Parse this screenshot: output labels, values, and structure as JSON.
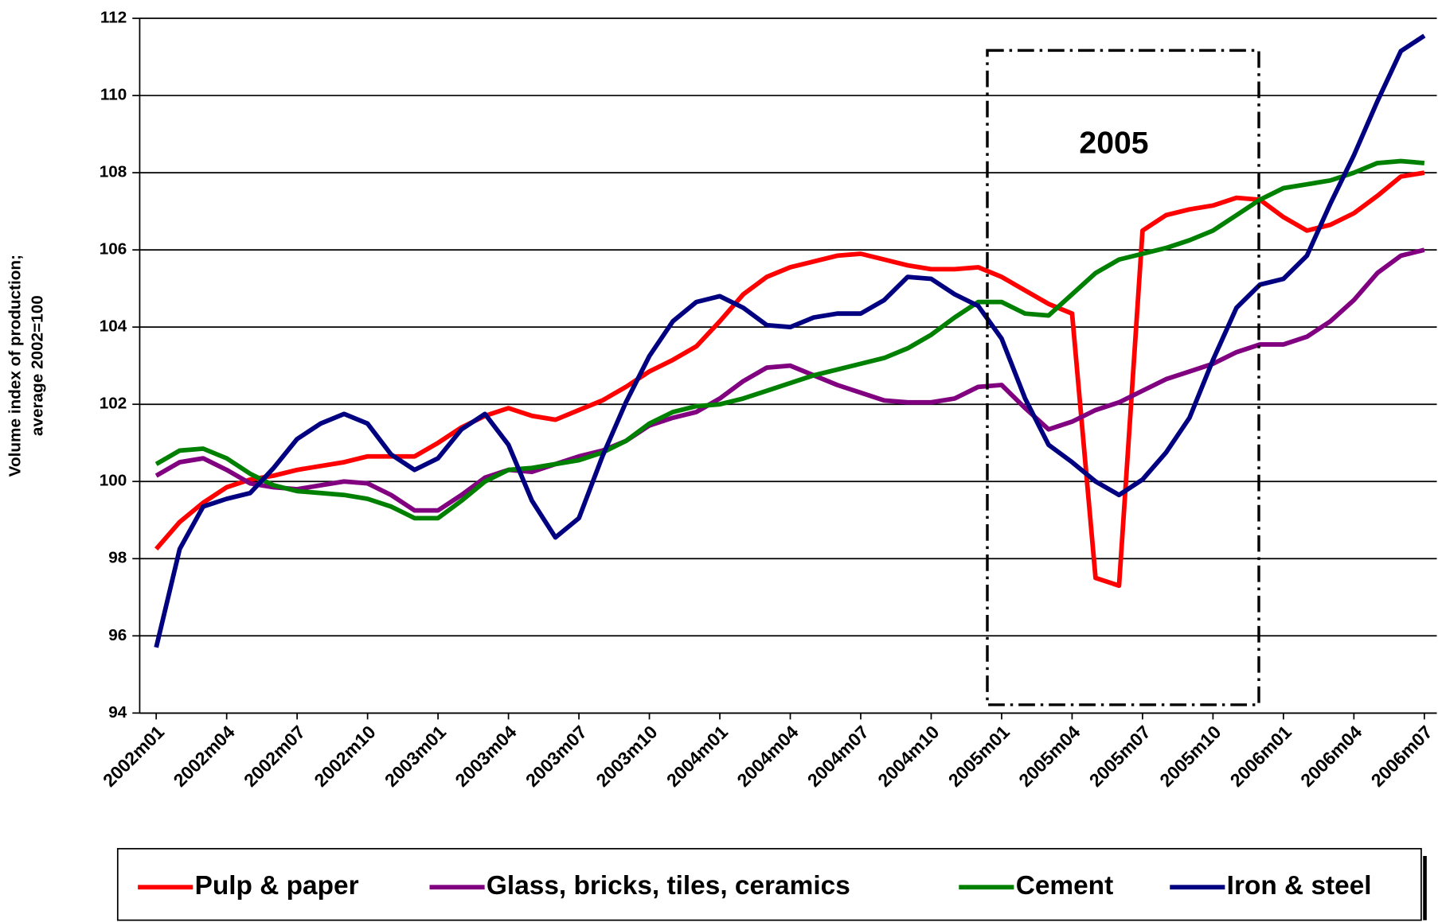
{
  "chart_data": {
    "type": "line",
    "ylabel": [
      "Volume index of production;",
      "average 2002=100"
    ],
    "annotation": "2005",
    "categories": [
      "2002m01",
      null,
      null,
      "2002m04",
      null,
      null,
      "2002m07",
      null,
      null,
      "2002m10",
      null,
      null,
      "2003m01",
      null,
      null,
      "2003m04",
      null,
      null,
      "2003m07",
      null,
      null,
      "2003m10",
      null,
      null,
      "2004m01",
      null,
      null,
      "2004m04",
      null,
      null,
      "2004m07",
      null,
      null,
      "2004m10",
      null,
      null,
      "2005m01",
      null,
      null,
      "2005m04",
      null,
      null,
      "2005m07",
      null,
      null,
      "2005m10",
      null,
      null,
      "2006m01",
      null,
      null,
      "2006m04",
      null,
      null,
      "2006m07"
    ],
    "ylim": [
      94,
      112
    ],
    "yticks": [
      94,
      96,
      98,
      100,
      102,
      104,
      106,
      108,
      110,
      112
    ],
    "grid": true,
    "legend": "bottom",
    "series": [
      {
        "name": "Pulp & paper",
        "color": "#ff0000",
        "values": [
          98.25,
          98.95,
          99.45,
          99.85,
          100.05,
          100.15,
          100.3,
          100.4,
          100.5,
          100.65,
          100.65,
          100.65,
          101.0,
          101.4,
          101.7,
          101.9,
          101.7,
          101.6,
          101.85,
          102.1,
          102.45,
          102.85,
          103.15,
          103.5,
          104.15,
          104.85,
          105.3,
          105.55,
          105.7,
          105.85,
          105.9,
          105.75,
          105.6,
          105.5,
          105.5,
          105.55,
          105.3,
          104.95,
          104.6,
          104.35,
          97.5,
          97.3,
          106.5,
          106.9,
          107.05,
          107.15,
          107.35,
          107.3,
          106.85,
          106.5,
          106.65,
          106.95,
          107.4,
          107.9,
          108.0
        ]
      },
      {
        "name": "Glass, bricks, tiles, ceramics",
        "color": "#800080",
        "values": [
          100.15,
          100.5,
          100.6,
          100.3,
          99.95,
          99.85,
          99.8,
          99.9,
          100.0,
          99.95,
          99.65,
          99.25,
          99.25,
          99.65,
          100.1,
          100.3,
          100.25,
          100.45,
          100.65,
          100.8,
          101.05,
          101.45,
          101.65,
          101.8,
          102.15,
          102.6,
          102.95,
          103.0,
          102.75,
          102.5,
          102.3,
          102.1,
          102.05,
          102.05,
          102.15,
          102.45,
          102.5,
          101.9,
          101.35,
          101.55,
          101.85,
          102.05,
          102.35,
          102.65,
          102.85,
          103.05,
          103.35,
          103.55,
          103.55,
          103.75,
          104.15,
          104.7,
          105.4,
          105.85,
          106.0
        ]
      },
      {
        "name": "Cement",
        "color": "#008000",
        "values": [
          100.45,
          100.8,
          100.85,
          100.6,
          100.2,
          99.9,
          99.75,
          99.7,
          99.65,
          99.55,
          99.35,
          99.05,
          99.05,
          99.5,
          100.0,
          100.3,
          100.35,
          100.45,
          100.55,
          100.75,
          101.05,
          101.5,
          101.8,
          101.95,
          102.0,
          102.15,
          102.35,
          102.55,
          102.75,
          102.9,
          103.05,
          103.2,
          103.45,
          103.8,
          104.25,
          104.65,
          104.65,
          104.35,
          104.3,
          104.85,
          105.4,
          105.75,
          105.9,
          106.05,
          106.25,
          106.5,
          106.9,
          107.3,
          107.6,
          107.7,
          107.8,
          108.0,
          108.25,
          108.3,
          108.25
        ]
      },
      {
        "name": "Iron & steel",
        "color": "#000080",
        "values": [
          95.7,
          98.25,
          99.35,
          99.55,
          99.7,
          100.35,
          101.1,
          101.5,
          101.75,
          101.5,
          100.7,
          100.3,
          100.6,
          101.35,
          101.75,
          100.95,
          99.5,
          98.55,
          99.05,
          100.65,
          102.05,
          103.25,
          104.15,
          104.65,
          104.8,
          104.5,
          104.05,
          104.0,
          104.25,
          104.35,
          104.35,
          104.7,
          105.3,
          105.25,
          104.85,
          104.55,
          103.7,
          102.15,
          100.95,
          100.5,
          100.0,
          99.65,
          100.05,
          100.75,
          101.65,
          103.15,
          104.5,
          105.1,
          105.25,
          105.85,
          107.2,
          108.45,
          109.85,
          111.15,
          111.55
        ]
      }
    ]
  }
}
